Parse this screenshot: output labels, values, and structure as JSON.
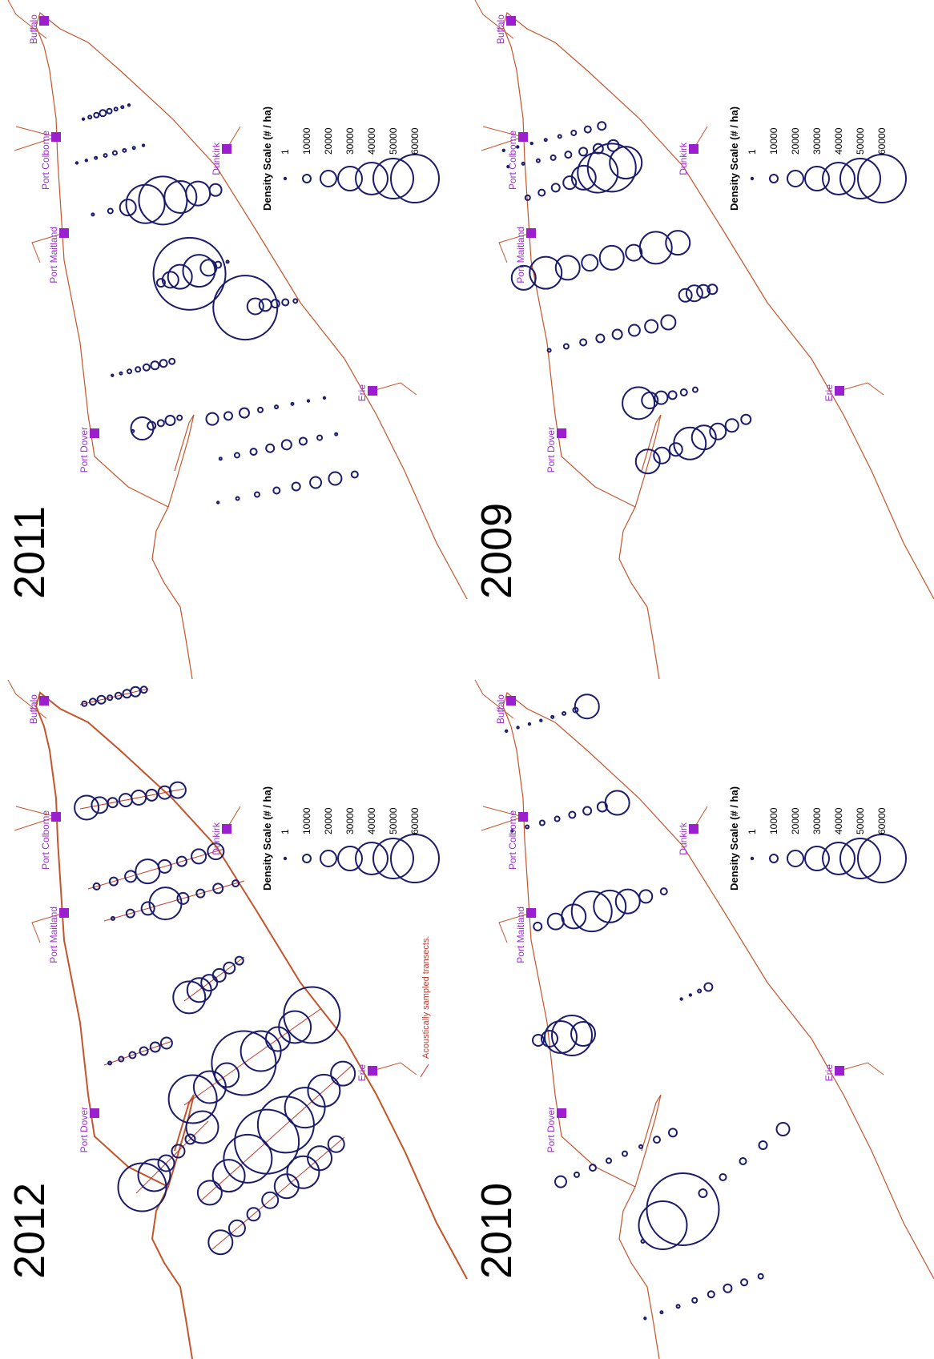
{
  "cities": [
    "Buffalo",
    "Port Colborne",
    "Port Maitland",
    "Port Dover",
    "Dunkirk",
    "Erie"
  ],
  "legend": {
    "title": "Density Scale (# / ha)",
    "values": [
      1,
      10000,
      20000,
      30000,
      40000,
      50000,
      60000
    ]
  },
  "panels": [
    {
      "year": "2012",
      "note": "Acoustically sampled transects.",
      "densities": [
        [
          6000,
          8000,
          10000,
          6000,
          8000,
          10000,
          12000,
          8000
        ],
        [
          30000,
          20000,
          12000,
          16000,
          18000,
          14000,
          16000,
          20000
        ],
        [
          8000,
          10000,
          14000,
          30000,
          16000,
          12000,
          18000,
          20000
        ],
        [
          4000,
          10000,
          16000,
          40000,
          14000,
          10000,
          12000,
          8000
        ],
        [
          40000,
          30000,
          20000,
          16000,
          14000,
          10000
        ],
        [
          4000,
          6000,
          8000,
          10000,
          12000,
          14000
        ],
        [
          60000,
          40000,
          30000,
          80000,
          50000,
          30000,
          40000,
          70000
        ],
        [
          60000,
          40000,
          20000,
          16000,
          12000,
          40000
        ],
        [
          30000,
          40000,
          60000,
          80000,
          70000,
          50000,
          40000,
          30000
        ],
        [
          30000,
          20000,
          16000,
          20000,
          30000,
          40000,
          30000,
          20000
        ]
      ]
    },
    {
      "year": "2011",
      "densities": [
        [
          2000,
          4000,
          6000,
          8000,
          6000,
          4000,
          3000,
          2000
        ],
        [
          1000,
          2000,
          3000,
          4000,
          5000,
          4000,
          3000,
          2000
        ],
        [
          3000,
          6000,
          20000,
          48000,
          60000,
          40000,
          30000,
          15000
        ],
        [
          10000,
          20000,
          30000,
          90000,
          40000,
          20000,
          8000,
          3000
        ],
        [
          80000,
          20000,
          15000,
          10000,
          8000,
          5000
        ],
        [
          2000,
          3000,
          5000,
          6000,
          8000,
          10000,
          9000,
          7000
        ],
        [
          3000,
          28000,
          10000,
          8000,
          12000,
          6000
        ],
        [
          15000,
          10000,
          12000,
          6000,
          4000,
          3000,
          2000,
          1000
        ],
        [
          3000,
          6000,
          8000,
          10000,
          12000,
          9000,
          6000,
          3000
        ],
        [
          2000,
          4000,
          6000,
          8000,
          10000,
          14000,
          16000,
          8000
        ]
      ]
    },
    {
      "year": "2010",
      "densities": [
        [
          1000,
          1000,
          2000,
          2000,
          3000,
          4000,
          6000,
          30000
        ],
        [
          2000,
          4000,
          6000,
          6000,
          8000,
          10000,
          12000,
          30000
        ],
        [
          10000,
          20000,
          30000,
          50000,
          40000,
          30000,
          16000,
          8000
        ],
        [
          14000,
          20000,
          40000,
          50000,
          30000
        ],
        [
          2000,
          2000,
          4000,
          10000
        ],
        [
          14000,
          6000,
          8000,
          6000,
          6000,
          4000,
          8000,
          10000
        ],
        [
          4000,
          60000,
          90000,
          10000,
          8000,
          8000,
          10000,
          16000
        ],
        [
          2000,
          3000,
          4000,
          6000,
          8000,
          10000,
          8000,
          6000
        ]
      ]
    },
    {
      "year": "2009",
      "densities": [
        [
          1000,
          1000,
          2000,
          3000,
          4000,
          6000,
          8000,
          10000
        ],
        [
          2000,
          3000,
          4000,
          6000,
          8000,
          10000,
          12000,
          14000
        ],
        [
          6000,
          8000,
          10000,
          16000,
          30000,
          50000,
          60000,
          40000
        ],
        [
          30000,
          40000,
          30000,
          20000,
          30000,
          20000,
          40000,
          30000
        ],
        [
          16000,
          20000,
          16000,
          12000
        ],
        [
          4000,
          6000,
          8000,
          10000,
          12000,
          14000,
          16000,
          18000
        ],
        [
          40000,
          20000,
          16000,
          10000,
          8000,
          6000
        ],
        [
          30000,
          20000,
          16000,
          40000,
          30000,
          20000,
          16000,
          12000
        ]
      ]
    }
  ]
}
